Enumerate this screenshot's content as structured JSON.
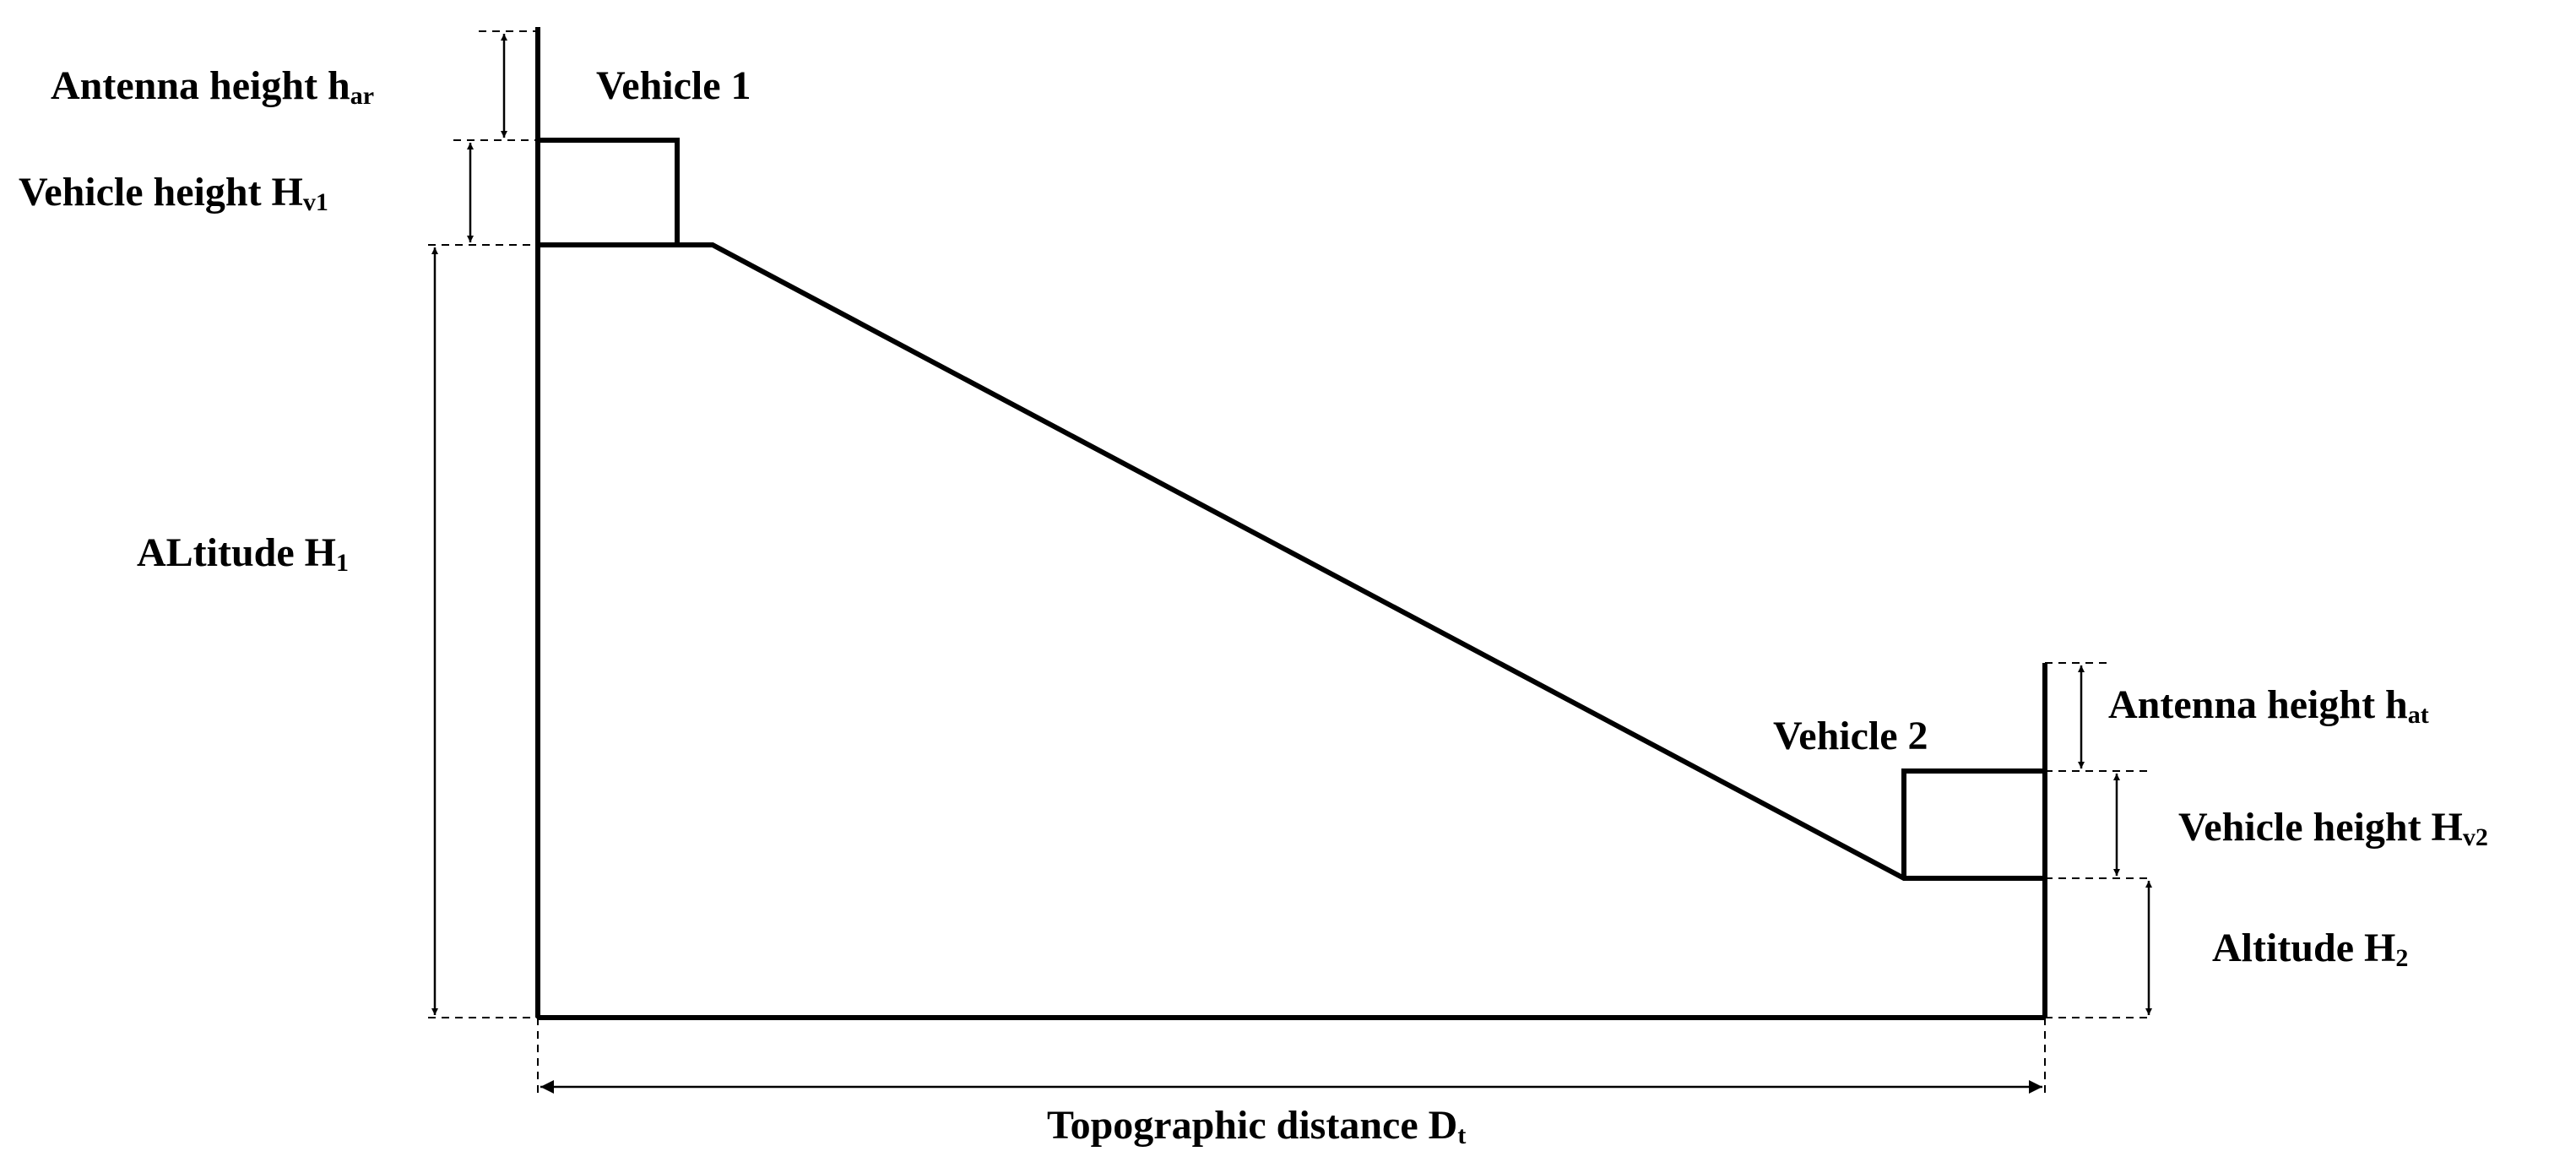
{
  "diagram": {
    "vehicle1_label": "Vehicle 1",
    "vehicle2_label": "Vehicle 2",
    "antenna_height_r": {
      "text": "Antenna height h",
      "sub": "ar"
    },
    "vehicle_height_1": {
      "text": "Vehicle height H",
      "sub": "v1"
    },
    "altitude_1": {
      "text": "ALtitude H",
      "sub": "1"
    },
    "antenna_height_t": {
      "text": "Antenna height h",
      "sub": "at"
    },
    "vehicle_height_2": {
      "text": "Vehicle height H",
      "sub": "v2"
    },
    "altitude_2": {
      "text": "Altitude H",
      "sub": "2"
    },
    "topographic_distance": {
      "text": "Topographic distance D",
      "sub": "t"
    },
    "colors": {
      "stroke": "#000000",
      "background": "#ffffff"
    }
  }
}
